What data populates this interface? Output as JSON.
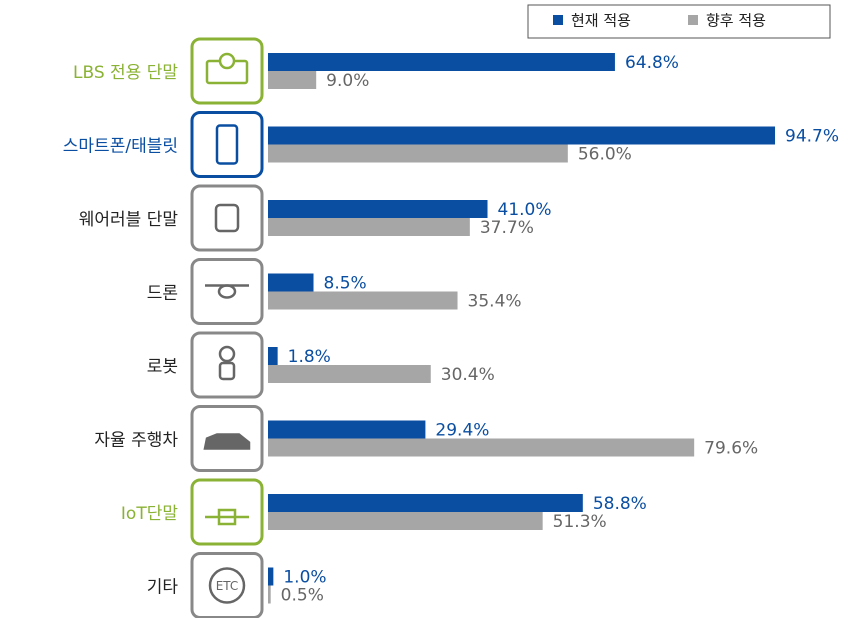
{
  "chart_data": {
    "type": "hbar-grouped",
    "categories": [
      "LBS 전용 단말",
      "스마트폰/태블릿",
      "웨어러블 단말",
      "드론",
      "로봇",
      "자율 주행차",
      "IoT단말",
      "기타"
    ],
    "category_colors": [
      "#8ab234",
      "#0a4ea2",
      "#222222",
      "#222222",
      "#222222",
      "#222222",
      "#8ab234",
      "#222222"
    ],
    "icon_text": "ETC",
    "series": [
      {
        "name": "현재 적용",
        "color": "#0a4ea2",
        "label_color": "#0a4ea2",
        "values": [
          64.8,
          94.7,
          41.0,
          8.5,
          1.8,
          29.4,
          58.8,
          1.0
        ],
        "value_labels": [
          "64.8%",
          "94.7%",
          "41.0%",
          "8.5%",
          "1.8%",
          "29.4%",
          "58.8%",
          "1.0%"
        ]
      },
      {
        "name": "향후 적용",
        "color": "#a6a6a6",
        "label_color": "#666666",
        "values": [
          9.0,
          56.0,
          37.7,
          35.4,
          30.4,
          79.6,
          51.3,
          0.5
        ],
        "value_labels": [
          "9.0%",
          "56.0%",
          "37.7%",
          "35.4%",
          "30.4%",
          "79.6%",
          "51.3%",
          "0.5%"
        ]
      }
    ],
    "legend": "top-right"
  }
}
